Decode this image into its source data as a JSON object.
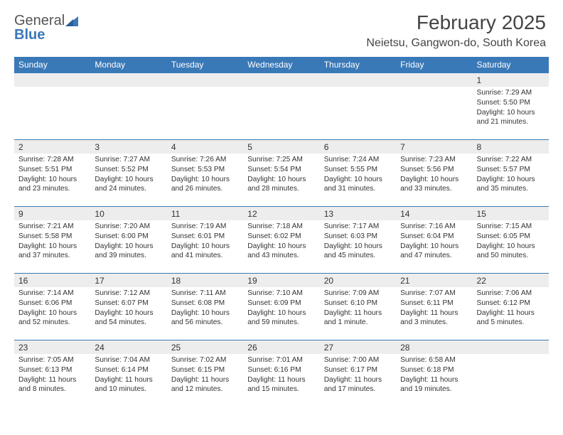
{
  "brand": {
    "part1": "General",
    "part2": "Blue"
  },
  "header": {
    "month": "February 2025",
    "location": "Neietsu, Gangwon-do, South Korea"
  },
  "colors": {
    "header_blue": "#3a79b7",
    "row_gray": "#ededed",
    "text": "#333333",
    "bg": "#ffffff"
  },
  "day_labels": [
    "Sunday",
    "Monday",
    "Tuesday",
    "Wednesday",
    "Thursday",
    "Friday",
    "Saturday"
  ],
  "weeks": [
    [
      null,
      null,
      null,
      null,
      null,
      null,
      {
        "n": "1",
        "sunrise": "7:29 AM",
        "sunset": "5:50 PM",
        "dl": "Daylight: 10 hours and 21 minutes."
      }
    ],
    [
      {
        "n": "2",
        "sunrise": "7:28 AM",
        "sunset": "5:51 PM",
        "dl": "Daylight: 10 hours and 23 minutes."
      },
      {
        "n": "3",
        "sunrise": "7:27 AM",
        "sunset": "5:52 PM",
        "dl": "Daylight: 10 hours and 24 minutes."
      },
      {
        "n": "4",
        "sunrise": "7:26 AM",
        "sunset": "5:53 PM",
        "dl": "Daylight: 10 hours and 26 minutes."
      },
      {
        "n": "5",
        "sunrise": "7:25 AM",
        "sunset": "5:54 PM",
        "dl": "Daylight: 10 hours and 28 minutes."
      },
      {
        "n": "6",
        "sunrise": "7:24 AM",
        "sunset": "5:55 PM",
        "dl": "Daylight: 10 hours and 31 minutes."
      },
      {
        "n": "7",
        "sunrise": "7:23 AM",
        "sunset": "5:56 PM",
        "dl": "Daylight: 10 hours and 33 minutes."
      },
      {
        "n": "8",
        "sunrise": "7:22 AM",
        "sunset": "5:57 PM",
        "dl": "Daylight: 10 hours and 35 minutes."
      }
    ],
    [
      {
        "n": "9",
        "sunrise": "7:21 AM",
        "sunset": "5:58 PM",
        "dl": "Daylight: 10 hours and 37 minutes."
      },
      {
        "n": "10",
        "sunrise": "7:20 AM",
        "sunset": "6:00 PM",
        "dl": "Daylight: 10 hours and 39 minutes."
      },
      {
        "n": "11",
        "sunrise": "7:19 AM",
        "sunset": "6:01 PM",
        "dl": "Daylight: 10 hours and 41 minutes."
      },
      {
        "n": "12",
        "sunrise": "7:18 AM",
        "sunset": "6:02 PM",
        "dl": "Daylight: 10 hours and 43 minutes."
      },
      {
        "n": "13",
        "sunrise": "7:17 AM",
        "sunset": "6:03 PM",
        "dl": "Daylight: 10 hours and 45 minutes."
      },
      {
        "n": "14",
        "sunrise": "7:16 AM",
        "sunset": "6:04 PM",
        "dl": "Daylight: 10 hours and 47 minutes."
      },
      {
        "n": "15",
        "sunrise": "7:15 AM",
        "sunset": "6:05 PM",
        "dl": "Daylight: 10 hours and 50 minutes."
      }
    ],
    [
      {
        "n": "16",
        "sunrise": "7:14 AM",
        "sunset": "6:06 PM",
        "dl": "Daylight: 10 hours and 52 minutes."
      },
      {
        "n": "17",
        "sunrise": "7:12 AM",
        "sunset": "6:07 PM",
        "dl": "Daylight: 10 hours and 54 minutes."
      },
      {
        "n": "18",
        "sunrise": "7:11 AM",
        "sunset": "6:08 PM",
        "dl": "Daylight: 10 hours and 56 minutes."
      },
      {
        "n": "19",
        "sunrise": "7:10 AM",
        "sunset": "6:09 PM",
        "dl": "Daylight: 10 hours and 59 minutes."
      },
      {
        "n": "20",
        "sunrise": "7:09 AM",
        "sunset": "6:10 PM",
        "dl": "Daylight: 11 hours and 1 minute."
      },
      {
        "n": "21",
        "sunrise": "7:07 AM",
        "sunset": "6:11 PM",
        "dl": "Daylight: 11 hours and 3 minutes."
      },
      {
        "n": "22",
        "sunrise": "7:06 AM",
        "sunset": "6:12 PM",
        "dl": "Daylight: 11 hours and 5 minutes."
      }
    ],
    [
      {
        "n": "23",
        "sunrise": "7:05 AM",
        "sunset": "6:13 PM",
        "dl": "Daylight: 11 hours and 8 minutes."
      },
      {
        "n": "24",
        "sunrise": "7:04 AM",
        "sunset": "6:14 PM",
        "dl": "Daylight: 11 hours and 10 minutes."
      },
      {
        "n": "25",
        "sunrise": "7:02 AM",
        "sunset": "6:15 PM",
        "dl": "Daylight: 11 hours and 12 minutes."
      },
      {
        "n": "26",
        "sunrise": "7:01 AM",
        "sunset": "6:16 PM",
        "dl": "Daylight: 11 hours and 15 minutes."
      },
      {
        "n": "27",
        "sunrise": "7:00 AM",
        "sunset": "6:17 PM",
        "dl": "Daylight: 11 hours and 17 minutes."
      },
      {
        "n": "28",
        "sunrise": "6:58 AM",
        "sunset": "6:18 PM",
        "dl": "Daylight: 11 hours and 19 minutes."
      },
      null
    ]
  ],
  "label": {
    "sunrise_prefix": "Sunrise: ",
    "sunset_prefix": "Sunset: "
  }
}
